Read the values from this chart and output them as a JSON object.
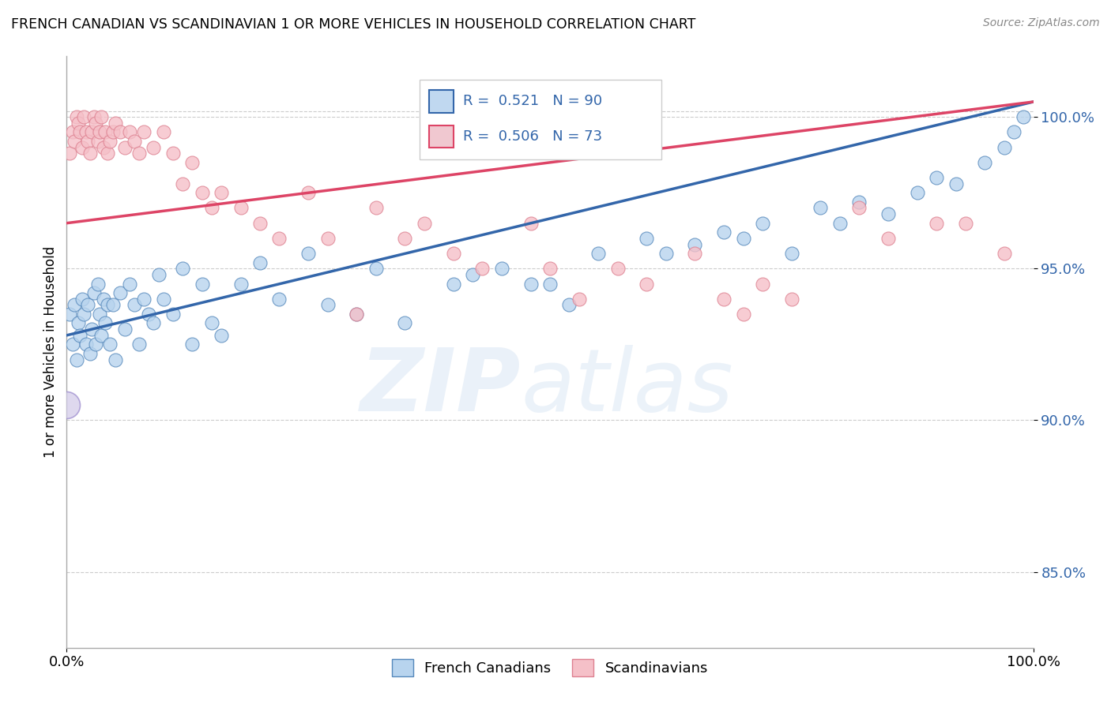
{
  "title": "FRENCH CANADIAN VS SCANDINAVIAN 1 OR MORE VEHICLES IN HOUSEHOLD CORRELATION CHART",
  "source": "Source: ZipAtlas.com",
  "ylabel": "1 or more Vehicles in Household",
  "xlim": [
    0,
    100
  ],
  "ylim": [
    82.5,
    102.0
  ],
  "yticks": [
    85.0,
    90.0,
    95.0,
    100.0
  ],
  "ytick_labels": [
    "85.0%",
    "90.0%",
    "95.0%",
    "100.0%"
  ],
  "french_R": 0.521,
  "french_N": 90,
  "scand_R": 0.506,
  "scand_N": 73,
  "blue_color": "#b8d4ee",
  "blue_edge": "#5588bb",
  "pink_color": "#f5c0c8",
  "pink_edge": "#dd8090",
  "blue_line_color": "#3366aa",
  "pink_line_color": "#dd4466",
  "legend_blue_color": "#c0d8f0",
  "legend_pink_color": "#f0c8d0",
  "french_x": [
    0.3,
    0.6,
    0.8,
    1.0,
    1.2,
    1.4,
    1.6,
    1.8,
    2.0,
    2.2,
    2.4,
    2.6,
    2.8,
    3.0,
    3.2,
    3.4,
    3.6,
    3.8,
    4.0,
    4.2,
    4.5,
    4.8,
    5.0,
    5.5,
    6.0,
    6.5,
    7.0,
    7.5,
    8.0,
    8.5,
    9.0,
    9.5,
    10.0,
    11.0,
    12.0,
    13.0,
    14.0,
    15.0,
    16.0,
    18.0,
    20.0,
    22.0,
    25.0,
    27.0,
    30.0,
    32.0,
    35.0,
    40.0,
    42.0,
    45.0,
    48.0,
    50.0,
    52.0,
    55.0,
    60.0,
    62.0,
    65.0,
    68.0,
    70.0,
    72.0,
    75.0,
    78.0,
    80.0,
    82.0,
    85.0,
    88.0,
    90.0,
    92.0,
    95.0,
    97.0,
    98.0,
    99.0
  ],
  "french_y": [
    93.5,
    92.5,
    93.8,
    92.0,
    93.2,
    92.8,
    94.0,
    93.5,
    92.5,
    93.8,
    92.2,
    93.0,
    94.2,
    92.5,
    94.5,
    93.5,
    92.8,
    94.0,
    93.2,
    93.8,
    92.5,
    93.8,
    92.0,
    94.2,
    93.0,
    94.5,
    93.8,
    92.5,
    94.0,
    93.5,
    93.2,
    94.8,
    94.0,
    93.5,
    95.0,
    92.5,
    94.5,
    93.2,
    92.8,
    94.5,
    95.2,
    94.0,
    95.5,
    93.8,
    93.5,
    95.0,
    93.2,
    94.5,
    94.8,
    95.0,
    94.5,
    94.5,
    93.8,
    95.5,
    96.0,
    95.5,
    95.8,
    96.2,
    96.0,
    96.5,
    95.5,
    97.0,
    96.5,
    97.2,
    96.8,
    97.5,
    98.0,
    97.8,
    98.5,
    99.0,
    99.5,
    100.0
  ],
  "french_outlier_x": [
    0.0
  ],
  "french_outlier_y": [
    90.5
  ],
  "scand_x": [
    0.3,
    0.6,
    0.8,
    1.0,
    1.2,
    1.4,
    1.6,
    1.8,
    2.0,
    2.2,
    2.4,
    2.6,
    2.8,
    3.0,
    3.2,
    3.4,
    3.6,
    3.8,
    4.0,
    4.2,
    4.5,
    4.8,
    5.0,
    5.5,
    6.0,
    6.5,
    7.0,
    7.5,
    8.0,
    9.0,
    10.0,
    11.0,
    12.0,
    13.0,
    14.0,
    15.0,
    16.0,
    18.0,
    20.0,
    22.0,
    25.0,
    27.0,
    30.0,
    32.0,
    35.0,
    37.0,
    40.0,
    43.0,
    48.0,
    50.0,
    53.0,
    57.0,
    60.0,
    65.0,
    68.0,
    70.0,
    72.0,
    75.0,
    82.0,
    85.0,
    90.0,
    93.0,
    97.0
  ],
  "scand_y": [
    98.8,
    99.5,
    99.2,
    100.0,
    99.8,
    99.5,
    99.0,
    100.0,
    99.5,
    99.2,
    98.8,
    99.5,
    100.0,
    99.8,
    99.2,
    99.5,
    100.0,
    99.0,
    99.5,
    98.8,
    99.2,
    99.5,
    99.8,
    99.5,
    99.0,
    99.5,
    99.2,
    98.8,
    99.5,
    99.0,
    99.5,
    98.8,
    97.8,
    98.5,
    97.5,
    97.0,
    97.5,
    97.0,
    96.5,
    96.0,
    97.5,
    96.0,
    93.5,
    97.0,
    96.0,
    96.5,
    95.5,
    95.0,
    96.5,
    95.0,
    94.0,
    95.0,
    94.5,
    95.5,
    94.0,
    93.5,
    94.5,
    94.0,
    97.0,
    96.0,
    96.5,
    96.5,
    95.5
  ],
  "trend_blue_x0": 0,
  "trend_blue_y0": 92.8,
  "trend_blue_x1": 100,
  "trend_blue_y1": 100.5,
  "trend_pink_x0": 0,
  "trend_pink_y0": 96.5,
  "trend_pink_x1": 100,
  "trend_pink_y1": 100.5
}
